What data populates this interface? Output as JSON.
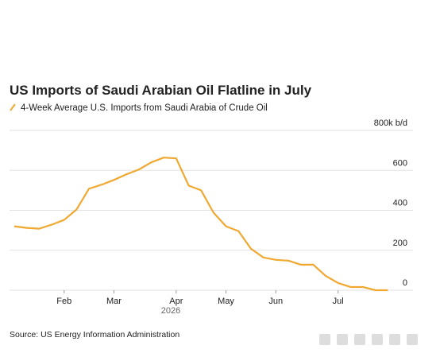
{
  "chart_data": {
    "type": "line",
    "title": "US Imports of Saudi Arabian Oil Flatline in July",
    "x_label": "2026",
    "source": "Source: US Energy Information Administration",
    "categories": [
      null,
      null,
      null,
      null,
      "Feb",
      null,
      null,
      null,
      "Mar",
      null,
      null,
      null,
      null,
      "Apr",
      null,
      null,
      null,
      "May",
      null,
      null,
      null,
      "Jun",
      null,
      null,
      null,
      null,
      "Jul",
      null,
      null,
      null,
      null
    ],
    "series": [
      {
        "name": "4-Week Average U.S. Imports from Saudi Arabia of Crude Oil",
        "color": "#f0a830",
        "values": [
          320,
          312,
          308,
          328,
          352,
          404,
          508,
          528,
          552,
          580,
          604,
          640,
          664,
          660,
          524,
          500,
          388,
          320,
          296,
          208,
          164,
          152,
          148,
          128,
          128,
          72,
          36,
          16,
          16,
          0,
          0
        ]
      }
    ],
    "ylim": [
      0,
      800
    ],
    "yticks": [
      0,
      200,
      400,
      600,
      {
        "value": 800,
        "label": "800k b/d"
      }
    ],
    "grid": true
  }
}
